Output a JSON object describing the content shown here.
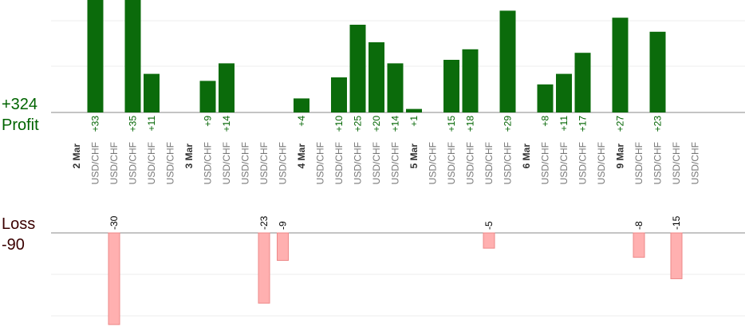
{
  "summary": {
    "profit_total": "+324",
    "profit_label": "Profit",
    "loss_label": "Loss",
    "loss_total": "-90"
  },
  "colors": {
    "profit_bar": "#0b6b0b",
    "profit_text": "#006400",
    "loss_bar": "#ffb0b0",
    "loss_text": "#3a0000",
    "day_text": "#333333",
    "pair_text": "#777777"
  },
  "chart_data": {
    "type": "bar",
    "grid": true,
    "profit_scale_max": 34,
    "loss_scale_max": 30,
    "categories": [
      "2 Mar",
      "USD/CHF",
      "USD/CHF",
      "USD/CHF",
      "USD/CHF",
      "USD/CHF",
      "3 Mar",
      "USD/CHF",
      "USD/CHF",
      "USD/CHF",
      "USD/CHF",
      "USD/CHF",
      "4 Mar",
      "USD/CHF",
      "USD/CHF",
      "USD/CHF",
      "USD/CHF",
      "USD/CHF",
      "5 Mar",
      "USD/CHF",
      "USD/CHF",
      "USD/CHF",
      "USD/CHF",
      "USD/CHF",
      "6 Mar",
      "USD/CHF",
      "USD/CHF",
      "USD/CHF",
      "USD/CHF",
      "9 Mar",
      "USD/CHF",
      "USD/CHF",
      "USD/CHF",
      "USD/CHF"
    ],
    "values": [
      null,
      33,
      -30,
      35,
      11,
      null,
      null,
      9,
      14,
      null,
      -23,
      -9,
      4,
      null,
      10,
      25,
      20,
      14,
      1,
      null,
      15,
      18,
      -5,
      29,
      null,
      8,
      11,
      17,
      null,
      27,
      -8,
      23,
      -15,
      null
    ],
    "labels": [
      "",
      "+33",
      "-30",
      "+35",
      "+11",
      "",
      "",
      "+9",
      "+14",
      "",
      "-23",
      "-9",
      "+4",
      "",
      "+10",
      "+25",
      "+20",
      "+14",
      "+1",
      "",
      "+15",
      "+18",
      "-5",
      "+29",
      "",
      "+8",
      "+11",
      "+17",
      "",
      "+27",
      "-8",
      "+23",
      "-15",
      ""
    ]
  }
}
